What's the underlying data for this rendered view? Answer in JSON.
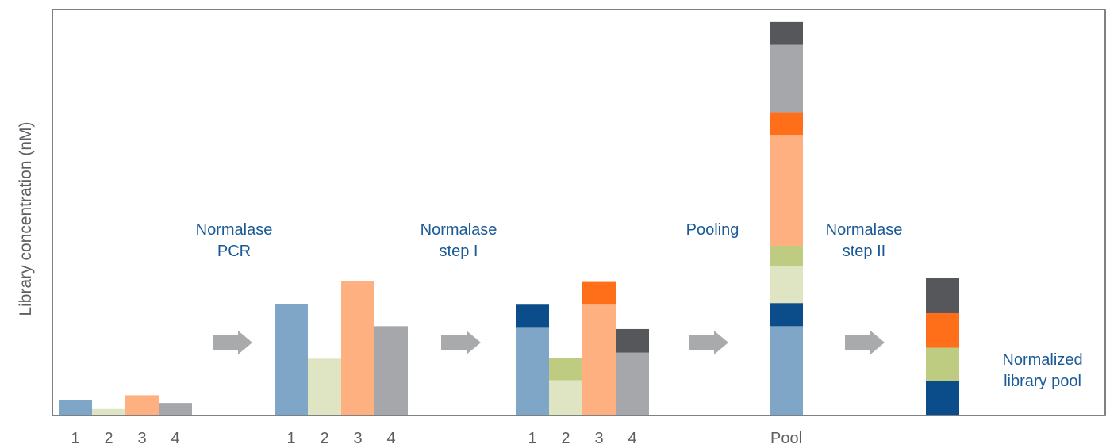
{
  "chart_data": {
    "type": "bar",
    "ylabel": "Library concentration (nM)",
    "xlabel": "",
    "colors": {
      "sample1": "#7fa6c6",
      "sample2": "#dfe4c2",
      "sample3": "#ffb080",
      "sample4": "#a6a7ab",
      "sample1_dark": "#0b4c8a",
      "sample2_dark": "#bdcc81",
      "sample3_dark": "#ff6f1a",
      "sample4_dark": "#55575b",
      "arrow": "#a9aaab",
      "axis": "#55575b"
    },
    "groups": [
      {
        "name": "initial",
        "tick_labels": [
          "1",
          "2",
          "3",
          "4"
        ],
        "bars": [
          {
            "sample": 1,
            "segments": [
              {
                "value": 3.8,
                "shade": "light"
              }
            ]
          },
          {
            "sample": 2,
            "segments": [
              {
                "value": 1.6,
                "shade": "light"
              }
            ]
          },
          {
            "sample": 3,
            "segments": [
              {
                "value": 5.0,
                "shade": "light"
              }
            ]
          },
          {
            "sample": 4,
            "segments": [
              {
                "value": 3.1,
                "shade": "light"
              }
            ]
          }
        ]
      },
      {
        "name": "after_pcr",
        "tick_labels": [
          "1",
          "2",
          "3",
          "4"
        ],
        "bars": [
          {
            "sample": 1,
            "segments": [
              {
                "value": 27.5,
                "shade": "light"
              }
            ]
          },
          {
            "sample": 2,
            "segments": [
              {
                "value": 14.0,
                "shade": "light"
              }
            ]
          },
          {
            "sample": 3,
            "segments": [
              {
                "value": 33.2,
                "shade": "light"
              }
            ]
          },
          {
            "sample": 4,
            "segments": [
              {
                "value": 22.0,
                "shade": "light"
              }
            ]
          }
        ]
      },
      {
        "name": "after_step_1",
        "tick_labels": [
          "1",
          "2",
          "3",
          "4"
        ],
        "bars": [
          {
            "sample": 1,
            "segments": [
              {
                "value": 21.6,
                "shade": "light"
              },
              {
                "value": 5.7,
                "shade": "dark"
              }
            ]
          },
          {
            "sample": 2,
            "segments": [
              {
                "value": 8.7,
                "shade": "light"
              },
              {
                "value": 5.4,
                "shade": "dark"
              }
            ]
          },
          {
            "sample": 3,
            "segments": [
              {
                "value": 27.3,
                "shade": "light"
              },
              {
                "value": 5.6,
                "shade": "dark"
              }
            ]
          },
          {
            "sample": 4,
            "segments": [
              {
                "value": 15.5,
                "shade": "light"
              },
              {
                "value": 5.8,
                "shade": "dark"
              }
            ]
          }
        ]
      },
      {
        "name": "pool",
        "tick_labels": [
          "Pool"
        ],
        "bars": [
          {
            "stack": [
              {
                "sample": 1,
                "value": 22.0,
                "shade": "light"
              },
              {
                "sample": 1,
                "value": 5.7,
                "shade": "dark"
              },
              {
                "sample": 2,
                "value": 9.1,
                "shade": "light"
              },
              {
                "sample": 2,
                "value": 5.0,
                "shade": "dark"
              },
              {
                "sample": 3,
                "value": 27.3,
                "shade": "light"
              },
              {
                "sample": 3,
                "value": 5.6,
                "shade": "dark"
              },
              {
                "sample": 4,
                "value": 16.6,
                "shade": "light"
              },
              {
                "sample": 4,
                "value": 5.6,
                "shade": "dark"
              }
            ]
          }
        ]
      },
      {
        "name": "normalized",
        "tick_labels": [],
        "bars": [
          {
            "stack": [
              {
                "sample": 1,
                "value": 8.4,
                "shade": "dark"
              },
              {
                "sample": 2,
                "value": 8.3,
                "shade": "dark"
              },
              {
                "sample": 3,
                "value": 8.5,
                "shade": "dark"
              },
              {
                "sample": 4,
                "value": 8.7,
                "shade": "dark"
              }
            ]
          }
        ]
      }
    ],
    "step_labels": [
      {
        "lines": [
          "Normalase",
          "PCR"
        ]
      },
      {
        "lines": [
          "Normalase",
          "step I"
        ]
      },
      {
        "lines": [
          "Pooling"
        ]
      },
      {
        "lines": [
          "Normalase",
          "step II"
        ]
      },
      {
        "lines": [
          "Normalized",
          "library pool"
        ]
      }
    ],
    "ylim": [
      0,
      100
    ],
    "grid": false,
    "legend": "none"
  }
}
